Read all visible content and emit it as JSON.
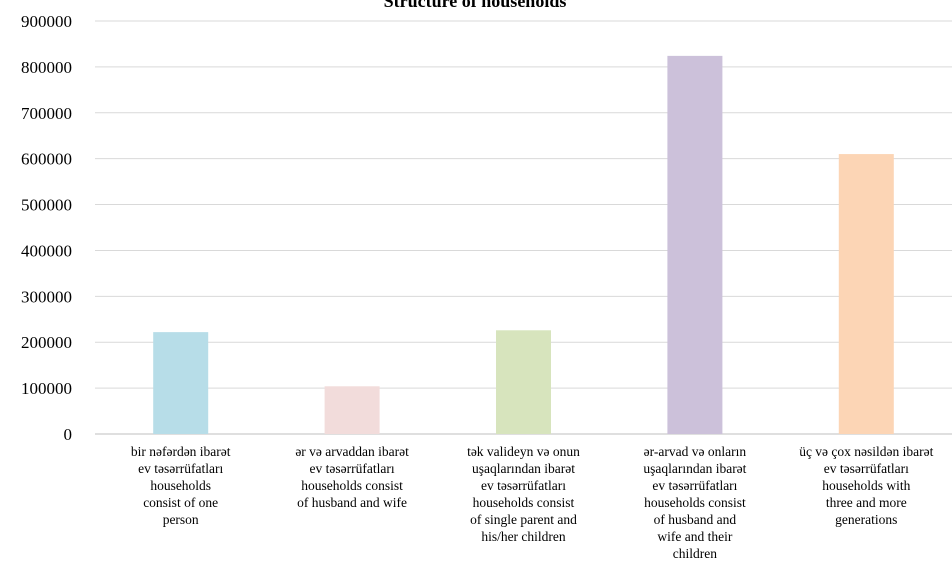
{
  "chart_data": {
    "type": "bar",
    "title": "Structure of households",
    "xlabel": "",
    "ylabel": "",
    "ylim": [
      0,
      900000
    ],
    "yticks": [
      0,
      100000,
      200000,
      300000,
      400000,
      500000,
      600000,
      700000,
      800000,
      900000
    ],
    "grid": true,
    "legend": "none",
    "categories": [
      [
        "bir nəfərdən ibarət",
        "ev təsərrüfatları",
        "households",
        "consist of one",
        "person"
      ],
      [
        "ər və arvaddan ibarət",
        "ev təsərrüfatları",
        "households consist",
        "of husband and wife"
      ],
      [
        "tək valideyn və onun",
        "uşaqlarından ibarət",
        "ev təsərrüfatları",
        "households consist",
        "of single parent and",
        "his/her children"
      ],
      [
        "ər-arvad və onların",
        "uşaqlarından ibarət",
        "ev təsərrüfatları",
        "households consist",
        "of husband  and",
        "wife and their",
        "children"
      ],
      [
        "üç və çox nəsildən ibarət",
        "ev təsərrüfatları",
        "households with",
        "three and more",
        "generations"
      ]
    ],
    "values": [
      222000,
      104000,
      226000,
      824000,
      610000
    ],
    "colors": [
      "#b7dde8",
      "#f2dcdb",
      "#d7e4bd",
      "#ccc1da",
      "#fcd5b5"
    ]
  }
}
